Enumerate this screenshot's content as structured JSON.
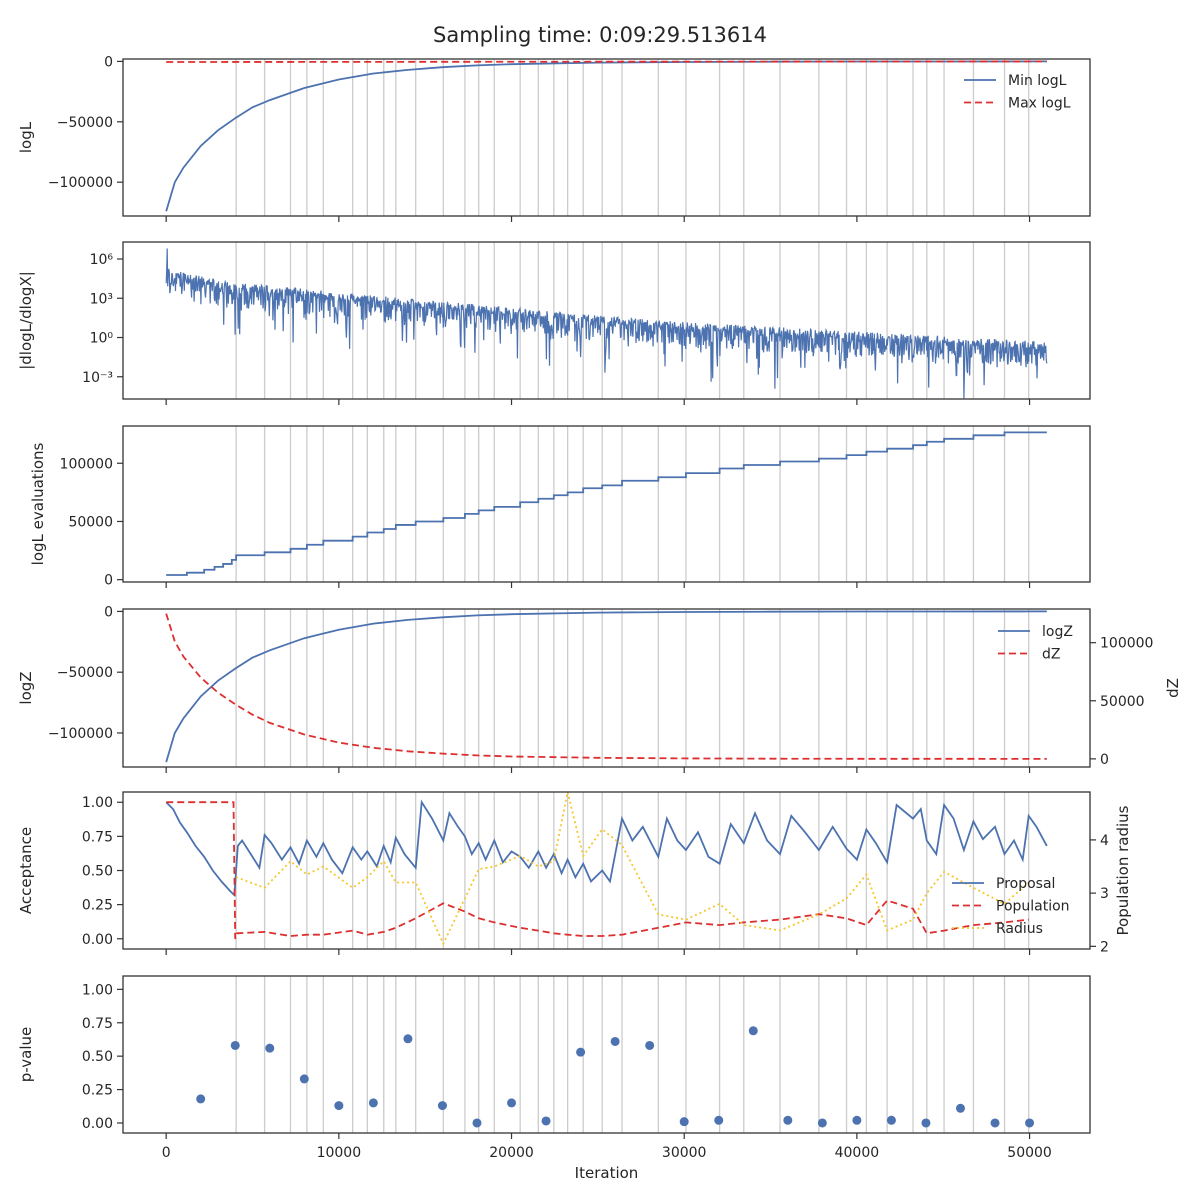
{
  "chart_data": {
    "title": "Sampling time: 0:09:29.513614",
    "type": "line",
    "colors": {
      "blue": "#4c72b0",
      "red": "#dd2f2f",
      "yellow": "#f7c62b",
      "grid": "#cccccc",
      "axis": "#333333"
    },
    "vlines": [
      4050,
      5700,
      7200,
      8150,
      9100,
      10800,
      11650,
      12600,
      13300,
      14450,
      16050,
      17300,
      18100,
      19000,
      20500,
      21550,
      22450,
      23250,
      24150,
      25250,
      26400,
      28500,
      30100,
      32050,
      33450,
      35550,
      37800,
      39400,
      40550,
      41750,
      43250,
      44050,
      45050,
      46750,
      48550,
      49950
    ],
    "xaxis": {
      "label": "Iteration",
      "lim": [
        -2500,
        53500
      ],
      "ticks": [
        0,
        10000,
        20000,
        30000,
        40000,
        50000
      ],
      "tick_labels": [
        "0",
        "10000",
        "20000",
        "30000",
        "40000",
        "50000"
      ]
    },
    "panels": [
      {
        "ylabel": "logL",
        "ylim": [
          -128000,
          2000
        ],
        "yticks": [
          0,
          -50000,
          -100000
        ],
        "ytick_labels": [
          "0",
          "−50000",
          "−100000"
        ],
        "legend": [
          "Min logL",
          "Max logL"
        ],
        "series": [
          {
            "name": "Min logL",
            "style": "solid",
            "color": "blue",
            "x": [
              0,
              500,
              1000,
              2000,
              3000,
              4000,
              5000,
              6000,
              8000,
              10000,
              12000,
              14000,
              16000,
              18000,
              20000,
              25000,
              30000,
              35000,
              40000,
              45000,
              51000
            ],
            "y": [
              -124000,
              -100000,
              -88000,
              -70000,
              -57000,
              -47000,
              -38000,
              -32000,
              -22000,
              -15000,
              -10000,
              -7000,
              -4800,
              -3300,
              -2300,
              -1000,
              -450,
              -200,
              -90,
              -40,
              -10
            ]
          },
          {
            "name": "Max logL",
            "style": "dashed",
            "color": "red",
            "x": [
              0,
              51000
            ],
            "y": [
              -500,
              0
            ]
          }
        ]
      },
      {
        "ylabel": "|dlogL/dlogX|",
        "ylog": true,
        "ylim": [
          -4.7,
          7.3
        ],
        "yticks": [
          6,
          3,
          0,
          -3
        ],
        "ytick_labels": [
          "10⁶",
          "10³",
          "10⁰",
          "10⁻³"
        ],
        "series": [
          {
            "name": "",
            "style": "noisy",
            "color": "blue",
            "trend_x": [
              0,
              3000,
              10000,
              20000,
              30000,
              40000,
              51000
            ],
            "trend_logy": [
              5.1,
              4.1,
              3.2,
              2.0,
              0.9,
              0.2,
              -0.6
            ],
            "spread_low": 3.2,
            "spread_high": 0.9,
            "peak_logy": 6.8
          }
        ]
      },
      {
        "ylabel": "logL evaluations",
        "ylim": [
          -2000,
          132000
        ],
        "yticks": [
          100000,
          50000,
          0
        ],
        "ytick_labels": [
          "100000",
          "50000",
          "0"
        ],
        "series": [
          {
            "name": "",
            "style": "step",
            "color": "blue",
            "x": [
              0,
              1200,
              2200,
              2800,
              3300,
              3800,
              4050,
              5700,
              7200,
              8150,
              9100,
              10800,
              11650,
              12600,
              13300,
              14450,
              16050,
              17300,
              18100,
              19000,
              20500,
              21550,
              22450,
              23250,
              24150,
              25250,
              26400,
              28500,
              30100,
              32050,
              33450,
              35550,
              37800,
              39400,
              40550,
              41750,
              43250,
              44050,
              45050,
              46750,
              48550,
              49950,
              51000
            ],
            "y": [
              4000,
              6000,
              8500,
              11000,
              13500,
              17000,
              21000,
              23500,
              26500,
              30000,
              33500,
              37000,
              40500,
              43500,
              47000,
              50000,
              53000,
              56500,
              59500,
              62500,
              66500,
              69500,
              72500,
              75000,
              78500,
              81000,
              85000,
              88000,
              91500,
              95500,
              98500,
              101500,
              104000,
              107000,
              110000,
              112500,
              115500,
              118500,
              121000,
              124000,
              126500,
              126500,
              126500
            ]
          }
        ]
      },
      {
        "ylabel": "logZ",
        "ylim": [
          -128000,
          2000
        ],
        "yticks": [
          0,
          -50000,
          -100000
        ],
        "ytick_labels": [
          "0",
          "−50000",
          "−100000"
        ],
        "ylabel2": "dZ",
        "ylim2": [
          -7000,
          129000
        ],
        "yticks2": [
          100000,
          50000,
          0
        ],
        "ytick_labels2": [
          "100000",
          "50000",
          "0"
        ],
        "legend": [
          "logZ",
          "dZ"
        ],
        "series": [
          {
            "name": "logZ",
            "style": "solid",
            "color": "blue",
            "x": [
              0,
              500,
              1000,
              2000,
              3000,
              4000,
              5000,
              6000,
              8000,
              10000,
              12000,
              14000,
              16000,
              18000,
              20000,
              25000,
              30000,
              35000,
              40000,
              45000,
              51000
            ],
            "y": [
              -124000,
              -100000,
              -88000,
              -70000,
              -57000,
              -47000,
              -38000,
              -32000,
              -22000,
              -15000,
              -10000,
              -7000,
              -4800,
              -3300,
              -2300,
              -1000,
              -450,
              -200,
              -90,
              -40,
              -10
            ]
          },
          {
            "name": "dZ",
            "style": "dashed",
            "color": "red",
            "axis": 2,
            "x": [
              0,
              500,
              1000,
              2000,
              3000,
              4000,
              5000,
              6000,
              8000,
              10000,
              12000,
              14000,
              16000,
              18000,
              20000,
              25000,
              30000,
              35000,
              40000,
              45000,
              51000
            ],
            "y": [
              125000,
              101000,
              88000,
              70000,
              57000,
              47000,
              38000,
              31000,
              21000,
              14000,
              9500,
              6500,
              4500,
              3000,
              2000,
              900,
              400,
              150,
              60,
              20,
              5
            ]
          }
        ]
      },
      {
        "ylabel": "Acceptance",
        "ylim": [
          -0.075,
          1.075
        ],
        "yticks": [
          1.0,
          0.75,
          0.5,
          0.25,
          0.0
        ],
        "ytick_labels": [
          "1.00",
          "0.75",
          "0.50",
          "0.25",
          "0.00"
        ],
        "ylabel2": "Population radius",
        "ylim2": [
          1.95,
          4.9
        ],
        "yticks2": [
          4,
          3,
          2
        ],
        "ytick_labels2": [
          "4",
          "3",
          "2"
        ],
        "legend": [
          "Proposal",
          "Population",
          "Radius"
        ],
        "series": [
          {
            "name": "Proposal",
            "style": "solid",
            "color": "blue",
            "x": [
              0,
              400,
              800,
              1200,
              1700,
              2200,
              2700,
              3200,
              3700,
              3950,
              4150,
              4400,
              4900,
              5400,
              5700,
              6100,
              6700,
              7200,
              7700,
              8150,
              8700,
              9100,
              9600,
              10200,
              10800,
              11300,
              11650,
              12200,
              12600,
              13000,
              13300,
              13800,
              14450,
              14800,
              15400,
              16050,
              16400,
              16900,
              17300,
              17700,
              18100,
              18500,
              19000,
              19500,
              20000,
              20500,
              21000,
              21550,
              22000,
              22450,
              22900,
              23250,
              23700,
              24150,
              24600,
              25250,
              25700,
              26400,
              27000,
              27600,
              28500,
              29000,
              29600,
              30100,
              30800,
              31400,
              32050,
              32700,
              33450,
              34100,
              34800,
              35550,
              36200,
              37000,
              37800,
              38600,
              39400,
              40000,
              40550,
              41100,
              41750,
              42300,
              43250,
              43700,
              44050,
              44600,
              45050,
              45600,
              46200,
              46750,
              47300,
              48000,
              48550,
              49100,
              49600,
              49950,
              50400,
              51000
            ],
            "y": [
              1.0,
              0.95,
              0.85,
              0.78,
              0.68,
              0.6,
              0.5,
              0.42,
              0.35,
              0.32,
              0.68,
              0.72,
              0.62,
              0.52,
              0.76,
              0.7,
              0.58,
              0.67,
              0.55,
              0.72,
              0.6,
              0.7,
              0.58,
              0.48,
              0.67,
              0.58,
              0.64,
              0.53,
              0.68,
              0.56,
              0.74,
              0.62,
              0.52,
              1.0,
              0.88,
              0.72,
              0.92,
              0.82,
              0.75,
              0.62,
              0.7,
              0.58,
              0.72,
              0.56,
              0.64,
              0.6,
              0.52,
              0.64,
              0.52,
              0.62,
              0.48,
              0.58,
              0.45,
              0.55,
              0.42,
              0.5,
              0.42,
              0.88,
              0.72,
              0.82,
              0.6,
              0.88,
              0.72,
              0.65,
              0.78,
              0.6,
              0.55,
              0.84,
              0.7,
              0.92,
              0.72,
              0.62,
              0.9,
              0.78,
              0.65,
              0.82,
              0.66,
              0.58,
              0.8,
              0.7,
              0.56,
              0.98,
              0.88,
              0.95,
              0.72,
              0.62,
              0.98,
              0.88,
              0.65,
              0.86,
              0.73,
              0.82,
              0.62,
              0.72,
              0.58,
              0.9,
              0.82,
              0.68
            ]
          },
          {
            "name": "Population",
            "style": "dashed",
            "color": "red",
            "x": [
              0,
              3900,
              4000,
              4100,
              5700,
              7200,
              8150,
              9100,
              10800,
              11650,
              12600,
              13300,
              14450,
              16050,
              17300,
              18100,
              19000,
              20500,
              21550,
              22450,
              23250,
              24150,
              25250,
              26400,
              28500,
              30100,
              32050,
              33450,
              35550,
              37800,
              39400,
              40550,
              41750,
              43250,
              44050,
              45050,
              46750,
              48550,
              49950
            ],
            "y": [
              1.0,
              1.0,
              0.0,
              0.04,
              0.05,
              0.02,
              0.03,
              0.03,
              0.06,
              0.03,
              0.05,
              0.08,
              0.15,
              0.26,
              0.2,
              0.15,
              0.12,
              0.08,
              0.06,
              0.04,
              0.03,
              0.02,
              0.02,
              0.03,
              0.08,
              0.12,
              0.1,
              0.12,
              0.14,
              0.18,
              0.15,
              0.1,
              0.28,
              0.22,
              0.04,
              0.06,
              0.1,
              0.12,
              0.14
            ]
          },
          {
            "name": "Radius",
            "style": "dotted",
            "color": "yellow",
            "axis": 2,
            "x": [
              4050,
              5700,
              7200,
              8150,
              9100,
              10800,
              11650,
              12600,
              13300,
              14450,
              16050,
              17300,
              18100,
              19000,
              20500,
              21550,
              22450,
              23250,
              24150,
              25250,
              26400,
              28500,
              30100,
              32050,
              33450,
              35550,
              37800,
              39400,
              40550,
              41750,
              43250,
              44050,
              45050,
              46750,
              48550,
              49950
            ],
            "y": [
              3.3,
              3.1,
              3.6,
              3.35,
              3.5,
              3.1,
              3.3,
              3.6,
              3.2,
              3.2,
              2.05,
              2.9,
              3.45,
              3.5,
              3.7,
              3.5,
              3.6,
              4.9,
              3.7,
              4.2,
              3.9,
              2.6,
              2.5,
              2.8,
              2.4,
              2.3,
              2.6,
              2.9,
              3.35,
              2.3,
              2.5,
              3.0,
              3.4,
              3.1,
              2.8,
              3.2
            ]
          }
        ]
      },
      {
        "ylabel": "p-value",
        "ylim": [
          -0.075,
          1.1
        ],
        "yticks": [
          1.0,
          0.75,
          0.5,
          0.25,
          0.0
        ],
        "ytick_labels": [
          "1.00",
          "0.75",
          "0.50",
          "0.25",
          "0.00"
        ],
        "series": [
          {
            "name": "",
            "style": "points",
            "color": "blue",
            "x": [
              2000,
              4000,
              6000,
              8000,
              10000,
              12000,
              14000,
              16000,
              18000,
              20000,
              22000,
              24000,
              26000,
              28000,
              30000,
              32000,
              34000,
              36000,
              38000,
              40000,
              42000,
              44000,
              46000,
              48000,
              50000
            ],
            "y": [
              0.18,
              0.58,
              0.56,
              0.33,
              0.13,
              0.15,
              0.63,
              0.13,
              0.0,
              0.15,
              0.015,
              0.53,
              0.61,
              0.58,
              0.01,
              0.02,
              0.69,
              0.02,
              0.0,
              0.02,
              0.02,
              0.0,
              0.11,
              0.0,
              0.0
            ]
          }
        ]
      }
    ]
  }
}
